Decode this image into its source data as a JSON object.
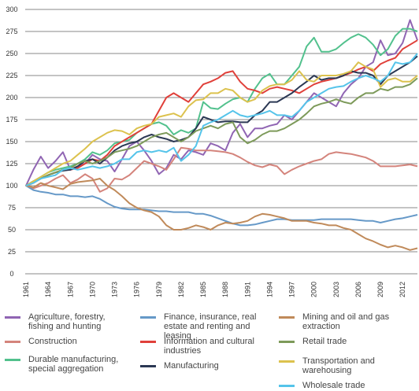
{
  "chart_data": {
    "type": "line",
    "x": [
      1961,
      1962,
      1963,
      1964,
      1965,
      1966,
      1967,
      1968,
      1969,
      1970,
      1971,
      1972,
      1973,
      1974,
      1975,
      1976,
      1977,
      1978,
      1979,
      1980,
      1981,
      1982,
      1983,
      1984,
      1985,
      1986,
      1987,
      1988,
      1989,
      1990,
      1991,
      1992,
      1993,
      1994,
      1995,
      1996,
      1997,
      1998,
      1999,
      2000,
      2001,
      2002,
      2003,
      2004,
      2005,
      2006,
      2007,
      2008,
      2009,
      2010,
      2011,
      2012,
      2013,
      2014
    ],
    "xlim": [
      1961,
      2014
    ],
    "xticks": [
      1961,
      1964,
      1967,
      1970,
      1973,
      1976,
      1979,
      1982,
      1985,
      1988,
      1991,
      1994,
      1997,
      2000,
      2003,
      2006,
      2009,
      2012
    ],
    "ylim": [
      0,
      300
    ],
    "yticks": [
      0,
      25,
      50,
      75,
      100,
      125,
      150,
      175,
      200,
      225,
      250,
      275,
      300
    ],
    "grid": true,
    "series": [
      {
        "name": "Agriculture, forestry, fishing and hunting",
        "color": "#9065b3",
        "values": [
          100,
          118,
          133,
          120,
          128,
          138,
          118,
          122,
          125,
          135,
          130,
          128,
          116,
          130,
          145,
          150,
          140,
          128,
          113,
          120,
          135,
          130,
          140,
          138,
          135,
          148,
          145,
          140,
          160,
          170,
          155,
          165,
          165,
          168,
          170,
          180,
          175,
          185,
          195,
          205,
          200,
          195,
          190,
          205,
          215,
          222,
          235,
          240,
          265,
          248,
          250,
          262,
          288,
          265
        ]
      },
      {
        "name": "Construction",
        "color": "#d4847c",
        "values": [
          100,
          97,
          100,
          103,
          108,
          112,
          103,
          107,
          113,
          108,
          93,
          97,
          108,
          107,
          112,
          120,
          128,
          125,
          122,
          118,
          130,
          143,
          142,
          140,
          140,
          140,
          139,
          138,
          136,
          132,
          127,
          123,
          121,
          124,
          122,
          113,
          118,
          122,
          125,
          128,
          130,
          136,
          138,
          137,
          136,
          134,
          132,
          128,
          122,
          122,
          122,
          123,
          124,
          122
        ]
      },
      {
        "name": "Durable manufacturing, special aggregation",
        "color": "#52c18d",
        "values": [
          100,
          105,
          110,
          115,
          118,
          120,
          122,
          125,
          130,
          138,
          135,
          140,
          148,
          150,
          152,
          160,
          165,
          170,
          172,
          168,
          158,
          163,
          160,
          165,
          195,
          188,
          187,
          193,
          198,
          200,
          195,
          210,
          222,
          227,
          215,
          215,
          225,
          235,
          258,
          268,
          252,
          252,
          255,
          262,
          268,
          272,
          268,
          260,
          248,
          255,
          270,
          278,
          278,
          275
        ]
      },
      {
        "name": "Finance, insurance, real estate and renting and leasing",
        "color": "#6699c8",
        "values": [
          100,
          95,
          93,
          92,
          90,
          90,
          88,
          88,
          87,
          88,
          85,
          80,
          76,
          74,
          73,
          73,
          73,
          72,
          71,
          71,
          70,
          70,
          70,
          68,
          68,
          66,
          63,
          60,
          57,
          55,
          55,
          56,
          58,
          60,
          62,
          62,
          61,
          61,
          61,
          61,
          62,
          62,
          62,
          62,
          62,
          61,
          60,
          60,
          58,
          60,
          62,
          63,
          65,
          67
        ]
      },
      {
        "name": "Information and cultural industries",
        "color": "#e0403a",
        "values": [
          100,
          103,
          108,
          112,
          115,
          118,
          118,
          120,
          125,
          130,
          128,
          135,
          145,
          150,
          155,
          160,
          165,
          170,
          185,
          200,
          205,
          200,
          195,
          205,
          215,
          218,
          222,
          228,
          230,
          218,
          210,
          208,
          205,
          210,
          212,
          210,
          208,
          205,
          210,
          215,
          218,
          220,
          222,
          225,
          228,
          232,
          235,
          230,
          238,
          242,
          245,
          255,
          260,
          265
        ]
      },
      {
        "name": "Manufacturing",
        "color": "#2b3854",
        "values": [
          100,
          105,
          108,
          112,
          115,
          117,
          118,
          122,
          128,
          130,
          125,
          132,
          140,
          145,
          148,
          150,
          155,
          158,
          155,
          153,
          150,
          152,
          155,
          165,
          178,
          175,
          172,
          173,
          173,
          172,
          172,
          180,
          185,
          195,
          195,
          200,
          205,
          212,
          218,
          225,
          220,
          222,
          222,
          225,
          230,
          228,
          228,
          225,
          215,
          225,
          230,
          235,
          240,
          247
        ]
      },
      {
        "name": "Mining and oil and gas extraction",
        "color": "#c08a5a",
        "values": [
          100,
          98,
          103,
          100,
          98,
          96,
          102,
          104,
          105,
          106,
          108,
          100,
          95,
          88,
          80,
          75,
          72,
          70,
          65,
          55,
          50,
          50,
          52,
          55,
          53,
          50,
          55,
          58,
          57,
          58,
          60,
          65,
          68,
          67,
          65,
          63,
          60,
          60,
          60,
          58,
          57,
          55,
          55,
          52,
          50,
          45,
          40,
          37,
          33,
          30,
          32,
          30,
          27,
          29
        ]
      },
      {
        "name": "Retail trade",
        "color": "#7d9a5a",
        "values": [
          100,
          104,
          108,
          112,
          115,
          118,
          120,
          125,
          128,
          125,
          128,
          132,
          138,
          140,
          142,
          145,
          150,
          155,
          158,
          160,
          155,
          150,
          155,
          162,
          165,
          168,
          165,
          170,
          172,
          155,
          148,
          152,
          158,
          162,
          162,
          165,
          170,
          175,
          182,
          190,
          193,
          195,
          198,
          195,
          193,
          200,
          205,
          205,
          210,
          208,
          212,
          212,
          215,
          222
        ]
      },
      {
        "name": "Transportation and warehousing",
        "color": "#dcc24e",
        "values": [
          100,
          105,
          110,
          115,
          120,
          125,
          128,
          135,
          142,
          150,
          155,
          160,
          163,
          162,
          158,
          165,
          168,
          170,
          178,
          180,
          182,
          178,
          190,
          197,
          198,
          205,
          205,
          210,
          208,
          200,
          195,
          198,
          208,
          213,
          215,
          215,
          220,
          230,
          220,
          218,
          225,
          225,
          225,
          227,
          230,
          240,
          235,
          232,
          212,
          220,
          222,
          218,
          218,
          225
        ]
      },
      {
        "name": "Wholesale trade",
        "color": "#55c4ea",
        "values": [
          100,
          103,
          108,
          110,
          112,
          118,
          120,
          118,
          120,
          122,
          120,
          122,
          125,
          130,
          130,
          138,
          140,
          138,
          140,
          138,
          143,
          128,
          135,
          145,
          168,
          172,
          175,
          180,
          185,
          180,
          178,
          180,
          182,
          185,
          180,
          180,
          178,
          185,
          195,
          200,
          205,
          210,
          212,
          213,
          218,
          222,
          225,
          222,
          218,
          225,
          240,
          238,
          240,
          250
        ]
      }
    ]
  }
}
